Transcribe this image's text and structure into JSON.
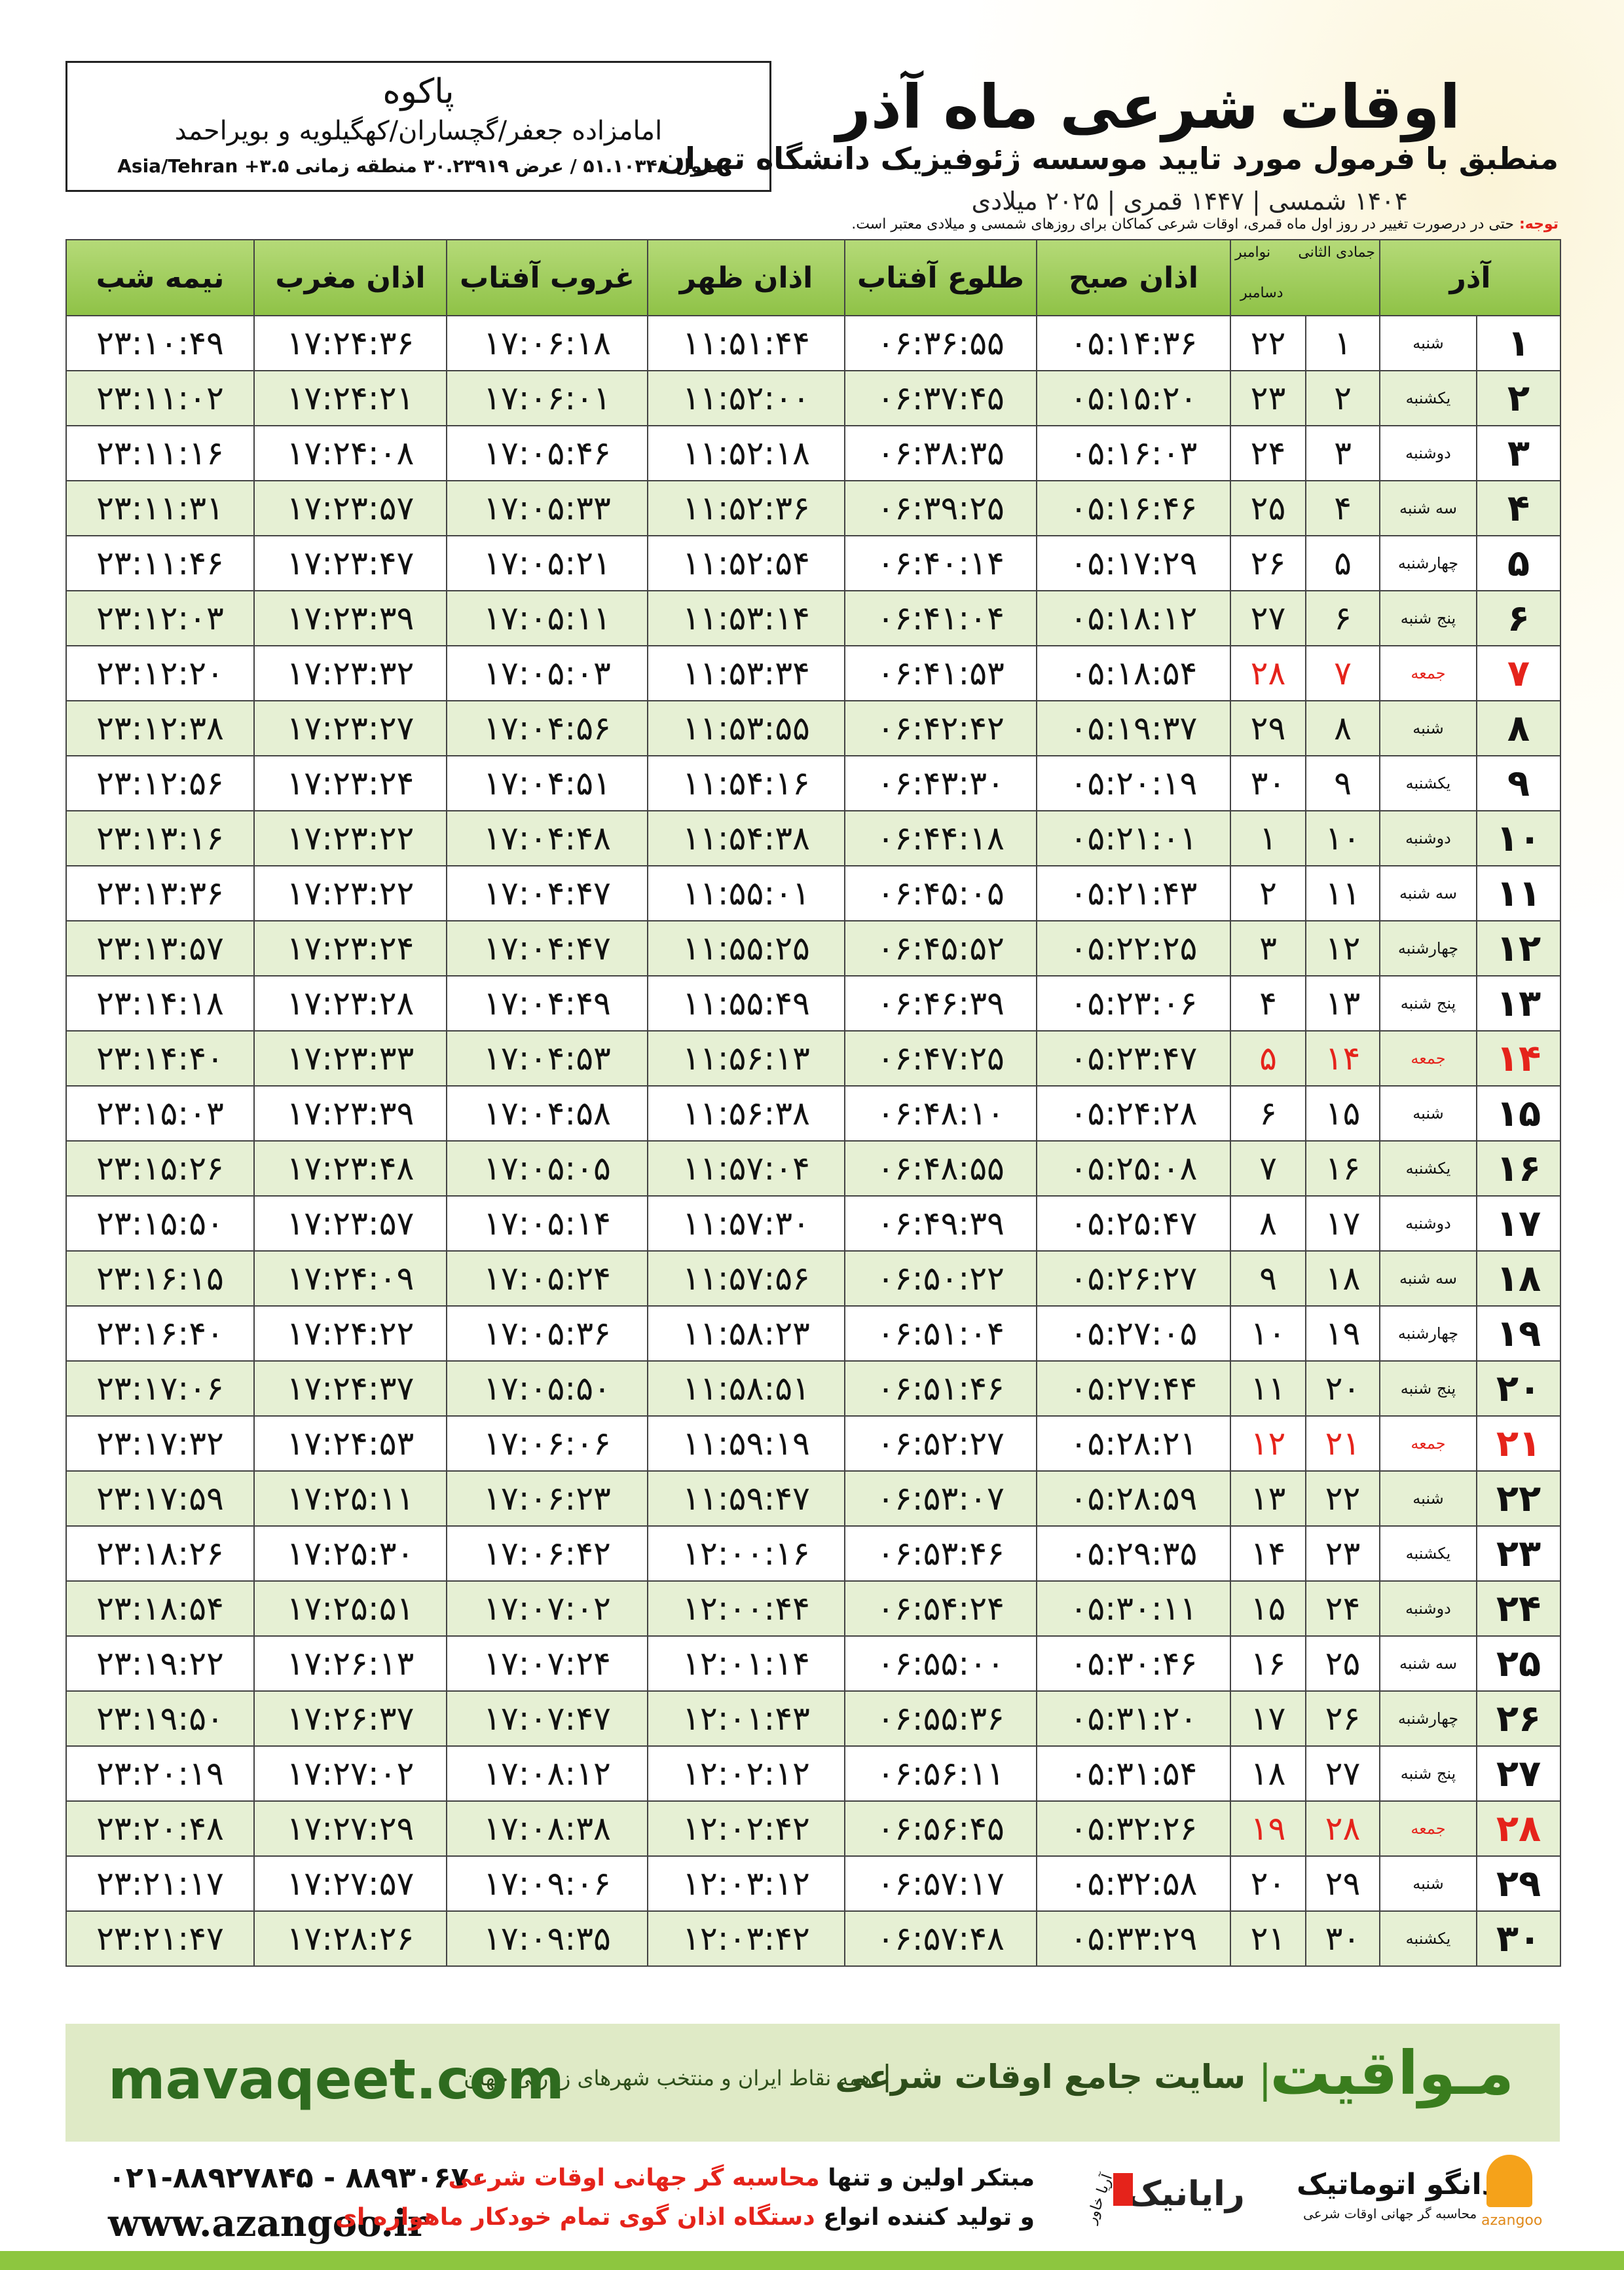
{
  "header": {
    "title": "اوقات شرعی ماه آذر",
    "subtitle": "منطبق با فرمول مورد تایید موسسه ژئوفیزیک دانشگاه تهران",
    "dates": "۱۴۰۴ شمسی | ۱۴۴۷ قمری | ۲۰۲۵ میلادی"
  },
  "location": {
    "name": "پاکوه",
    "region": "امامزاده جعفر/گچساران/کهگیلویه و بویراحمد",
    "coords": "طول ۵۱.۱۰۳۴۸ / عرض ۳۰.۲۳۹۱۹ منطقه زمانی ۳.۵+ Asia/Tehran"
  },
  "note": {
    "label": "توجه:",
    "text": "حتی در درصورت تغییر در روز اول ماه قمری، اوقات شرعی کماکان برای روزهای شمسی و میلادی معتبر است."
  },
  "table": {
    "holiday_color": "#e5231b",
    "headers": {
      "day": "آذر",
      "hijri": "جمادی الثانی",
      "gregorian_1": "نوامبر",
      "gregorian_2": "دسامبر",
      "times": [
        "اذان صبح",
        "طلوع آفتاب",
        "اذان ظهر",
        "غروب آفتاب",
        "اذان مغرب",
        "نیمه شب"
      ]
    },
    "rows": [
      {
        "cells": [
          "۱",
          "شنبه",
          "۱",
          "۲۲",
          "۰۵:۱۴:۳۶",
          "۰۶:۳۶:۵۵",
          "۱۱:۵۱:۴۴",
          "۱۷:۰۶:۱۸",
          "۱۷:۲۴:۳۶",
          "۲۳:۱۰:۴۹"
        ]
      },
      {
        "cells": [
          "۲",
          "یکشنبه",
          "۲",
          "۲۳",
          "۰۵:۱۵:۲۰",
          "۰۶:۳۷:۴۵",
          "۱۱:۵۲:۰۰",
          "۱۷:۰۶:۰۱",
          "۱۷:۲۴:۲۱",
          "۲۳:۱۱:۰۲"
        ]
      },
      {
        "cells": [
          "۳",
          "دوشنبه",
          "۳",
          "۲۴",
          "۰۵:۱۶:۰۳",
          "۰۶:۳۸:۳۵",
          "۱۱:۵۲:۱۸",
          "۱۷:۰۵:۴۶",
          "۱۷:۲۴:۰۸",
          "۲۳:۱۱:۱۶"
        ]
      },
      {
        "cells": [
          "۴",
          "سه شنبه",
          "۴",
          "۲۵",
          "۰۵:۱۶:۴۶",
          "۰۶:۳۹:۲۵",
          "۱۱:۵۲:۳۶",
          "۱۷:۰۵:۳۳",
          "۱۷:۲۳:۵۷",
          "۲۳:۱۱:۳۱"
        ]
      },
      {
        "cells": [
          "۵",
          "چهارشنبه",
          "۵",
          "۲۶",
          "۰۵:۱۷:۲۹",
          "۰۶:۴۰:۱۴",
          "۱۱:۵۲:۵۴",
          "۱۷:۰۵:۲۱",
          "۱۷:۲۳:۴۷",
          "۲۳:۱۱:۴۶"
        ]
      },
      {
        "cells": [
          "۶",
          "پنج شنبه",
          "۶",
          "۲۷",
          "۰۵:۱۸:۱۲",
          "۰۶:۴۱:۰۴",
          "۱۱:۵۳:۱۴",
          "۱۷:۰۵:۱۱",
          "۱۷:۲۳:۳۹",
          "۲۳:۱۲:۰۳"
        ]
      },
      {
        "cells": [
          "۷",
          "جمعه",
          "۷",
          "۲۸",
          "۰۵:۱۸:۵۴",
          "۰۶:۴۱:۵۳",
          "۱۱:۵۳:۳۴",
          "۱۷:۰۵:۰۳",
          "۱۷:۲۳:۳۲",
          "۲۳:۱۲:۲۰"
        ],
        "holiday": true
      },
      {
        "cells": [
          "۸",
          "شنبه",
          "۸",
          "۲۹",
          "۰۵:۱۹:۳۷",
          "۰۶:۴۲:۴۲",
          "۱۱:۵۳:۵۵",
          "۱۷:۰۴:۵۶",
          "۱۷:۲۳:۲۷",
          "۲۳:۱۲:۳۸"
        ]
      },
      {
        "cells": [
          "۹",
          "یکشنبه",
          "۹",
          "۳۰",
          "۰۵:۲۰:۱۹",
          "۰۶:۴۳:۳۰",
          "۱۱:۵۴:۱۶",
          "۱۷:۰۴:۵۱",
          "۱۷:۲۳:۲۴",
          "۲۳:۱۲:۵۶"
        ]
      },
      {
        "cells": [
          "۱۰",
          "دوشنبه",
          "۱۰",
          "۱",
          "۰۵:۲۱:۰۱",
          "۰۶:۴۴:۱۸",
          "۱۱:۵۴:۳۸",
          "۱۷:۰۴:۴۸",
          "۱۷:۲۳:۲۲",
          "۲۳:۱۳:۱۶"
        ]
      },
      {
        "cells": [
          "۱۱",
          "سه شنبه",
          "۱۱",
          "۲",
          "۰۵:۲۱:۴۳",
          "۰۶:۴۵:۰۵",
          "۱۱:۵۵:۰۱",
          "۱۷:۰۴:۴۷",
          "۱۷:۲۳:۲۲",
          "۲۳:۱۳:۳۶"
        ]
      },
      {
        "cells": [
          "۱۲",
          "چهارشنبه",
          "۱۲",
          "۳",
          "۰۵:۲۲:۲۵",
          "۰۶:۴۵:۵۲",
          "۱۱:۵۵:۲۵",
          "۱۷:۰۴:۴۷",
          "۱۷:۲۳:۲۴",
          "۲۳:۱۳:۵۷"
        ]
      },
      {
        "cells": [
          "۱۳",
          "پنج شنبه",
          "۱۳",
          "۴",
          "۰۵:۲۳:۰۶",
          "۰۶:۴۶:۳۹",
          "۱۱:۵۵:۴۹",
          "۱۷:۰۴:۴۹",
          "۱۷:۲۳:۲۸",
          "۲۳:۱۴:۱۸"
        ]
      },
      {
        "cells": [
          "۱۴",
          "جمعه",
          "۱۴",
          "۵",
          "۰۵:۲۳:۴۷",
          "۰۶:۴۷:۲۵",
          "۱۱:۵۶:۱۳",
          "۱۷:۰۴:۵۳",
          "۱۷:۲۳:۳۳",
          "۲۳:۱۴:۴۰"
        ],
        "holiday": true
      },
      {
        "cells": [
          "۱۵",
          "شنبه",
          "۱۵",
          "۶",
          "۰۵:۲۴:۲۸",
          "۰۶:۴۸:۱۰",
          "۱۱:۵۶:۳۸",
          "۱۷:۰۴:۵۸",
          "۱۷:۲۳:۳۹",
          "۲۳:۱۵:۰۳"
        ]
      },
      {
        "cells": [
          "۱۶",
          "یکشنبه",
          "۱۶",
          "۷",
          "۰۵:۲۵:۰۸",
          "۰۶:۴۸:۵۵",
          "۱۱:۵۷:۰۴",
          "۱۷:۰۵:۰۵",
          "۱۷:۲۳:۴۸",
          "۲۳:۱۵:۲۶"
        ]
      },
      {
        "cells": [
          "۱۷",
          "دوشنبه",
          "۱۷",
          "۸",
          "۰۵:۲۵:۴۷",
          "۰۶:۴۹:۳۹",
          "۱۱:۵۷:۳۰",
          "۱۷:۰۵:۱۴",
          "۱۷:۲۳:۵۷",
          "۲۳:۱۵:۵۰"
        ]
      },
      {
        "cells": [
          "۱۸",
          "سه شنبه",
          "۱۸",
          "۹",
          "۰۵:۲۶:۲۷",
          "۰۶:۵۰:۲۲",
          "۱۱:۵۷:۵۶",
          "۱۷:۰۵:۲۴",
          "۱۷:۲۴:۰۹",
          "۲۳:۱۶:۱۵"
        ]
      },
      {
        "cells": [
          "۱۹",
          "چهارشنبه",
          "۱۹",
          "۱۰",
          "۰۵:۲۷:۰۵",
          "۰۶:۵۱:۰۴",
          "۱۱:۵۸:۲۳",
          "۱۷:۰۵:۳۶",
          "۱۷:۲۴:۲۲",
          "۲۳:۱۶:۴۰"
        ]
      },
      {
        "cells": [
          "۲۰",
          "پنج شنبه",
          "۲۰",
          "۱۱",
          "۰۵:۲۷:۴۴",
          "۰۶:۵۱:۴۶",
          "۱۱:۵۸:۵۱",
          "۱۷:۰۵:۵۰",
          "۱۷:۲۴:۳۷",
          "۲۳:۱۷:۰۶"
        ]
      },
      {
        "cells": [
          "۲۱",
          "جمعه",
          "۲۱",
          "۱۲",
          "۰۵:۲۸:۲۱",
          "۰۶:۵۲:۲۷",
          "۱۱:۵۹:۱۹",
          "۱۷:۰۶:۰۶",
          "۱۷:۲۴:۵۳",
          "۲۳:۱۷:۳۲"
        ],
        "holiday": true
      },
      {
        "cells": [
          "۲۲",
          "شنبه",
          "۲۲",
          "۱۳",
          "۰۵:۲۸:۵۹",
          "۰۶:۵۳:۰۷",
          "۱۱:۵۹:۴۷",
          "۱۷:۰۶:۲۳",
          "۱۷:۲۵:۱۱",
          "۲۳:۱۷:۵۹"
        ]
      },
      {
        "cells": [
          "۲۳",
          "یکشنبه",
          "۲۳",
          "۱۴",
          "۰۵:۲۹:۳۵",
          "۰۶:۵۳:۴۶",
          "۱۲:۰۰:۱۶",
          "۱۷:۰۶:۴۲",
          "۱۷:۲۵:۳۰",
          "۲۳:۱۸:۲۶"
        ]
      },
      {
        "cells": [
          "۲۴",
          "دوشنبه",
          "۲۴",
          "۱۵",
          "۰۵:۳۰:۱۱",
          "۰۶:۵۴:۲۴",
          "۱۲:۰۰:۴۴",
          "۱۷:۰۷:۰۲",
          "۱۷:۲۵:۵۱",
          "۲۳:۱۸:۵۴"
        ]
      },
      {
        "cells": [
          "۲۵",
          "سه شنبه",
          "۲۵",
          "۱۶",
          "۰۵:۳۰:۴۶",
          "۰۶:۵۵:۰۰",
          "۱۲:۰۱:۱۴",
          "۱۷:۰۷:۲۴",
          "۱۷:۲۶:۱۳",
          "۲۳:۱۹:۲۲"
        ]
      },
      {
        "cells": [
          "۲۶",
          "چهارشنبه",
          "۲۶",
          "۱۷",
          "۰۵:۳۱:۲۰",
          "۰۶:۵۵:۳۶",
          "۱۲:۰۱:۴۳",
          "۱۷:۰۷:۴۷",
          "۱۷:۲۶:۳۷",
          "۲۳:۱۹:۵۰"
        ]
      },
      {
        "cells": [
          "۲۷",
          "پنج شنبه",
          "۲۷",
          "۱۸",
          "۰۵:۳۱:۵۴",
          "۰۶:۵۶:۱۱",
          "۱۲:۰۲:۱۲",
          "۱۷:۰۸:۱۲",
          "۱۷:۲۷:۰۲",
          "۲۳:۲۰:۱۹"
        ]
      },
      {
        "cells": [
          "۲۸",
          "جمعه",
          "۲۸",
          "۱۹",
          "۰۵:۳۲:۲۶",
          "۰۶:۵۶:۴۵",
          "۱۲:۰۲:۴۲",
          "۱۷:۰۸:۳۸",
          "۱۷:۲۷:۲۹",
          "۲۳:۲۰:۴۸"
        ],
        "holiday": true
      },
      {
        "cells": [
          "۲۹",
          "شنبه",
          "۲۹",
          "۲۰",
          "۰۵:۳۲:۵۸",
          "۰۶:۵۷:۱۷",
          "۱۲:۰۳:۱۲",
          "۱۷:۰۹:۰۶",
          "۱۷:۲۷:۵۷",
          "۲۳:۲۱:۱۷"
        ]
      },
      {
        "cells": [
          "۳۰",
          "یکشنبه",
          "۳۰",
          "۲۱",
          "۰۵:۳۳:۲۹",
          "۰۶:۵۷:۴۸",
          "۱۲:۰۳:۴۲",
          "۱۷:۰۹:۳۵",
          "۱۷:۲۸:۲۶",
          "۲۳:۲۱:۴۷"
        ]
      }
    ]
  },
  "banner": {
    "brand": "مـواقیت",
    "tagline": "سایت جامع اوقات شرعی",
    "coverage": "همه نقاط ایران و منتخب شهرهای زیارتی جهان",
    "url": "mavaqeet.com"
  },
  "footer": {
    "phone": "۰۲۱-۸۸۹۲۷۸۴۵ - ۸۸۹۳۰۶۷۰",
    "website": "www.azangoo.ir",
    "line1": [
      "مبتکر اولین و تنها",
      "محاسبه گر جهانی اوقات شرعی"
    ],
    "line2": [
      "و تولید کننده انواع",
      "دستگاه اذان گوی تمام خودکار ماهواره ای"
    ],
    "rayanik": "رایانیک",
    "aria": "آریا خاور",
    "azangoo_fa": "اذانگو اتوماتیک",
    "azangoo_sub": "محاسبه گر جهانی اوقات شرعی",
    "azangoo_en": "azangoo"
  }
}
